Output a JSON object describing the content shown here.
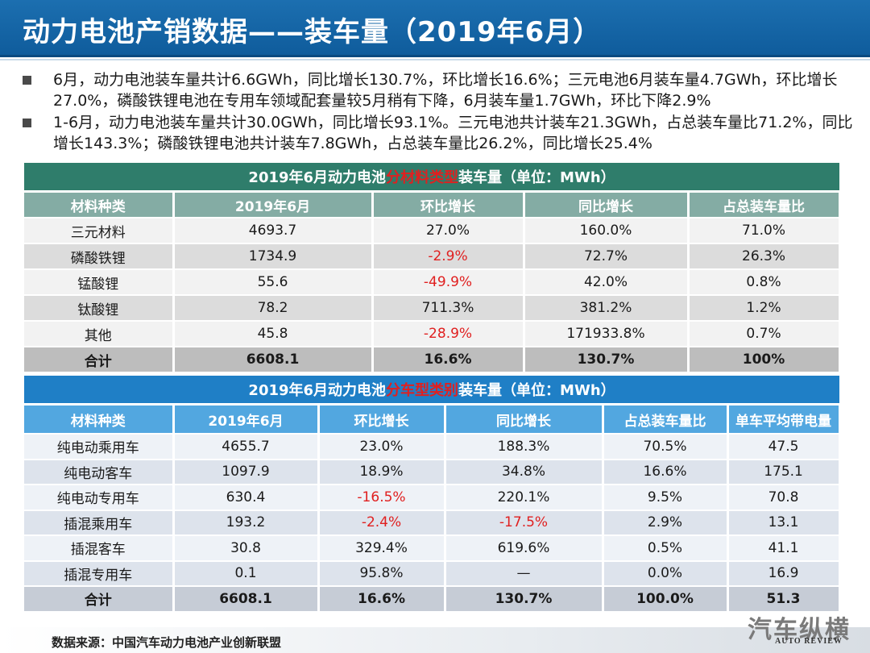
{
  "title": "动力电池产销数据——装车量（2019年6月）",
  "bullets": [
    "6月，动力电池装车量共计6.6GWh，同比增长130.7%，环比增长16.6%；三元电池6月装车量4.7GWh，环比增长27.0%，磷酸铁锂电池在专用车领域配套量较5月稍有下降，6月装车量1.7GWh，环比下降2.9%",
    "1-6月，动力电池装车量共计30.0GWh，同比增长93.1%。三元电池共计装车21.3GWh，占总装车量比71.2%，同比增长143.3%；磷酸铁锂电池共计装车7.8GWh，占总装车量比26.2%，同比增长25.4%"
  ],
  "table1": {
    "caption_pre": "2019年6月动力电池",
    "caption_red": "分材料类型",
    "caption_post": "装车量（单位：MWh）",
    "headers": [
      "材料种类",
      "2019年6月",
      "环比增长",
      "同比增长",
      "占总装车量比"
    ],
    "rows": [
      [
        "三元材料",
        "4693.7",
        "27.0%",
        "160.0%",
        "71.0%"
      ],
      [
        "磷酸铁锂",
        "1734.9",
        "-2.9%",
        "72.7%",
        "26.3%"
      ],
      [
        "锰酸锂",
        "55.6",
        "-49.9%",
        "42.0%",
        "0.8%"
      ],
      [
        "钛酸锂",
        "78.2",
        "711.3%",
        "381.2%",
        "1.2%"
      ],
      [
        "其他",
        "45.8",
        "-28.9%",
        "171933.8%",
        "0.7%"
      ]
    ],
    "total": [
      "合计",
      "6608.1",
      "16.6%",
      "130.7%",
      "100%"
    ]
  },
  "table2": {
    "caption_pre": "2019年6月动力电池",
    "caption_red": "分车型类别",
    "caption_post": "装车量（单位：MWh）",
    "headers": [
      "材料种类",
      "2019年6月",
      "环比增长",
      "同比增长",
      "占总装车量比",
      "单车平均带电量"
    ],
    "rows": [
      [
        "纯电动乘用车",
        "4655.7",
        "23.0%",
        "188.3%",
        "70.5%",
        "47.5"
      ],
      [
        "纯电动客车",
        "1097.9",
        "18.9%",
        "34.8%",
        "16.6%",
        "175.1"
      ],
      [
        "纯电动专用车",
        "630.4",
        "-16.5%",
        "220.1%",
        "9.5%",
        "70.8"
      ],
      [
        "插混乘用车",
        "193.2",
        "-2.4%",
        "-17.5%",
        "2.9%",
        "13.1"
      ],
      [
        "插混客车",
        "30.8",
        "329.4%",
        "619.6%",
        "0.5%",
        "41.1"
      ],
      [
        "插混专用车",
        "0.1",
        "95.8%",
        "—",
        "0.0%",
        "16.9"
      ]
    ],
    "total": [
      "合计",
      "6608.1",
      "16.6%",
      "130.7%",
      "100.0%",
      "51.3"
    ]
  },
  "source": "数据来源：中国汽车动力电池产业创新联盟",
  "logo": {
    "cn": "汽车纵横",
    "en": "AUTO REVIEW"
  },
  "colors": {
    "title_bar": "#1668a8",
    "table1_caption": "#2f7d6b",
    "table1_header": "#84aca4",
    "table2_caption": "#1f7fc6",
    "table2_header": "#52a7e0",
    "negative": "#e02020"
  }
}
